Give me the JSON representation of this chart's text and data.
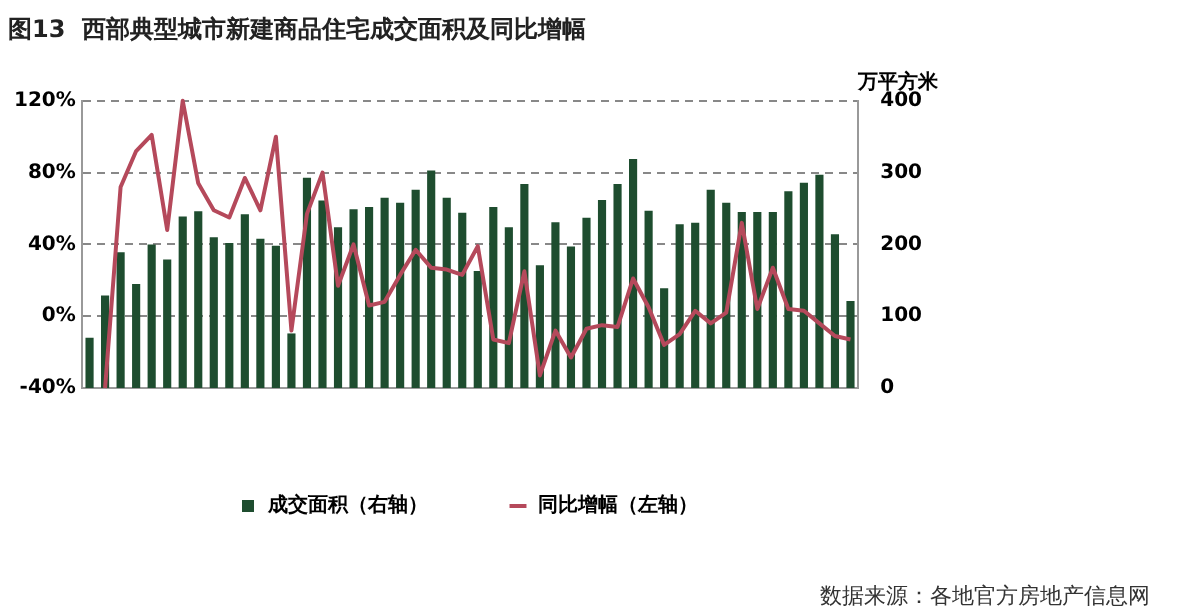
{
  "chart_data": {
    "type": "bar",
    "title": "图13  西部典型城市新建商品住宅成交面积及同比增幅",
    "y2label": "万平方米",
    "categories": [
      null,
      null,
      null,
      null,
      null,
      null,
      null,
      null,
      null,
      null,
      null,
      null,
      null,
      null,
      null,
      null,
      null,
      null,
      null,
      null,
      null,
      null,
      null,
      null,
      null,
      null,
      null,
      null,
      null,
      null,
      null,
      null,
      null,
      null,
      null,
      null,
      null,
      null,
      null,
      null,
      null,
      null,
      null,
      null,
      null,
      null,
      null,
      null,
      null,
      null
    ],
    "series": [
      {
        "name": "成交面积（右轴）",
        "axis": "y2",
        "color": "#1e4d2f",
        "values": [
          70,
          129,
          189,
          145,
          200,
          179,
          239,
          246,
          210,
          202,
          242,
          208,
          198,
          76,
          293,
          261,
          224,
          249,
          252,
          265,
          258,
          276,
          303,
          265,
          244,
          163,
          252,
          224,
          284,
          171,
          231,
          197,
          237,
          262,
          284,
          319,
          247,
          139,
          228,
          230,
          276,
          258,
          245,
          245,
          245,
          274,
          286,
          297,
          214,
          121
        ]
      },
      {
        "name": "同比增幅（左轴）",
        "type": "line",
        "color": "#b5495b",
        "values": [
          null,
          -40,
          72,
          92,
          101,
          48,
          120,
          74,
          59,
          55,
          77,
          59,
          100,
          -8,
          57,
          80,
          17,
          40,
          6,
          8,
          23,
          37,
          27,
          26,
          23,
          39,
          -13,
          -15,
          25,
          -33,
          -8,
          -23,
          -7,
          -5,
          -6,
          21,
          5,
          -16,
          -10,
          3,
          -4,
          2,
          52,
          4,
          27,
          4,
          3,
          -4,
          -11,
          -13
        ]
      }
    ],
    "ylim": [
      -40,
      120
    ],
    "yticks": [
      {
        "value": -40,
        "label": "-40%"
      },
      {
        "value": 0,
        "label": "0%"
      },
      {
        "value": 40,
        "label": "40%"
      },
      {
        "value": 80,
        "label": "80%"
      },
      {
        "value": 120,
        "label": "120%"
      }
    ],
    "y2lim": [
      0,
      400
    ],
    "y2ticks": [
      0,
      100,
      200,
      300,
      400
    ],
    "grid": "y",
    "legend": "bottom",
    "marker": "none",
    "line_style": "solid",
    "annotations": [
      "数据来源：各地官方房地产信息网"
    ]
  }
}
